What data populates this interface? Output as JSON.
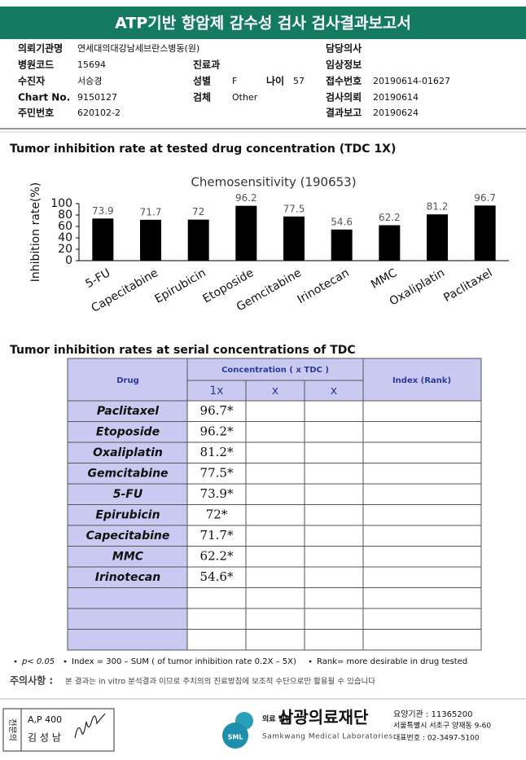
{
  "header": {
    "title": "ATP기반 항암제 감수성 검사 검사결과보고서"
  },
  "info": [
    {
      "label": "의뢰기관명",
      "value": "연세대의대강남세브란스병동(원)"
    },
    {
      "label": "담당의사"
    },
    {
      "label": "병원코드",
      "value": "15694"
    },
    {
      "label": "진료과"
    },
    {
      "label": "임상정보"
    },
    {
      "label": "수진자",
      "value": "서승경"
    },
    {
      "label": "성별",
      "value": "F"
    },
    {
      "label": "나이",
      "value": "57"
    },
    {
      "label": "접수번호",
      "value": "20190614-01627"
    },
    {
      "label": "Chart No.",
      "value": "9150127"
    },
    {
      "label": "검체",
      "value": "Other"
    },
    {
      "label": "검사의뢰",
      "value": "20190614"
    },
    {
      "label": "주민번호",
      "value": "620102-2"
    },
    {
      "label": "결과보고",
      "value": "20190624"
    }
  ],
  "section1": "Tumor inhibition rate at tested drug concentration (TDC 1X)",
  "chart_data": {
    "type": "bar",
    "title": "Chemosensitivity (190653)",
    "y_label": "Inhibition rate(%)",
    "categories": [
      "5-FU",
      "Capecitabine",
      "Epirubicin",
      "Etoposide",
      "Gemcitabine",
      "Irinotecan",
      "MMC",
      "Oxaliplatin",
      "Paclitaxel"
    ],
    "values": [
      73.9,
      71.7,
      72,
      96.2,
      77.5,
      54.6,
      62.2,
      81.2,
      96.7
    ],
    "color": "#000000",
    "ylim": [
      0,
      100
    ],
    "yticks": [
      0,
      20,
      40,
      60,
      80,
      100
    ]
  },
  "section2": "Tumor inhibition rates at serial concentrations of TDC",
  "table": {
    "headers": {
      "drug": "Drug",
      "concentration": "Concentration ( x TDC )",
      "cols": [
        "1x",
        "x",
        "x"
      ],
      "index": "Index (Rank)"
    },
    "rows": [
      [
        "Paclitaxel",
        "96.7*"
      ],
      [
        "Etoposide",
        "96.2*"
      ],
      [
        "Oxaliplatin",
        "81.2*"
      ],
      [
        "Gemcitabine",
        "77.5*"
      ],
      [
        "5-FU",
        "73.9*"
      ],
      [
        "Epirubicin",
        "72*"
      ],
      [
        "Capecitabine",
        "71.7*"
      ],
      [
        "MMC",
        "62.2*"
      ],
      [
        "Irinotecan",
        "54.6*"
      ]
    ]
  },
  "notes": [
    "p< 0.05",
    "Index = 300 – SUM ( of tumor inhibition rate 0.2X – 5X)",
    "Rank= more desirable in drug tested"
  ],
  "caution": {
    "label": "주의사항 :",
    "text": "본 결과는 in vitro 분석결과 이므로 주치의의 진료방침에 보조적 수단으로만 활용될 수 있습니다"
  },
  "footer": {
    "stamp_title": "전문의",
    "code": "A,P 400",
    "name": "김 성 남",
    "logo": "SML",
    "corp": "의료 법인",
    "org": "삼광의료재단",
    "org_en": "Samkwang Medical Laboratories",
    "lines": [
      "요양기관 : 11365200",
      "서울특별시 서초구 양재동 9-60",
      "대표번호 : 02-3497-5100"
    ]
  }
}
